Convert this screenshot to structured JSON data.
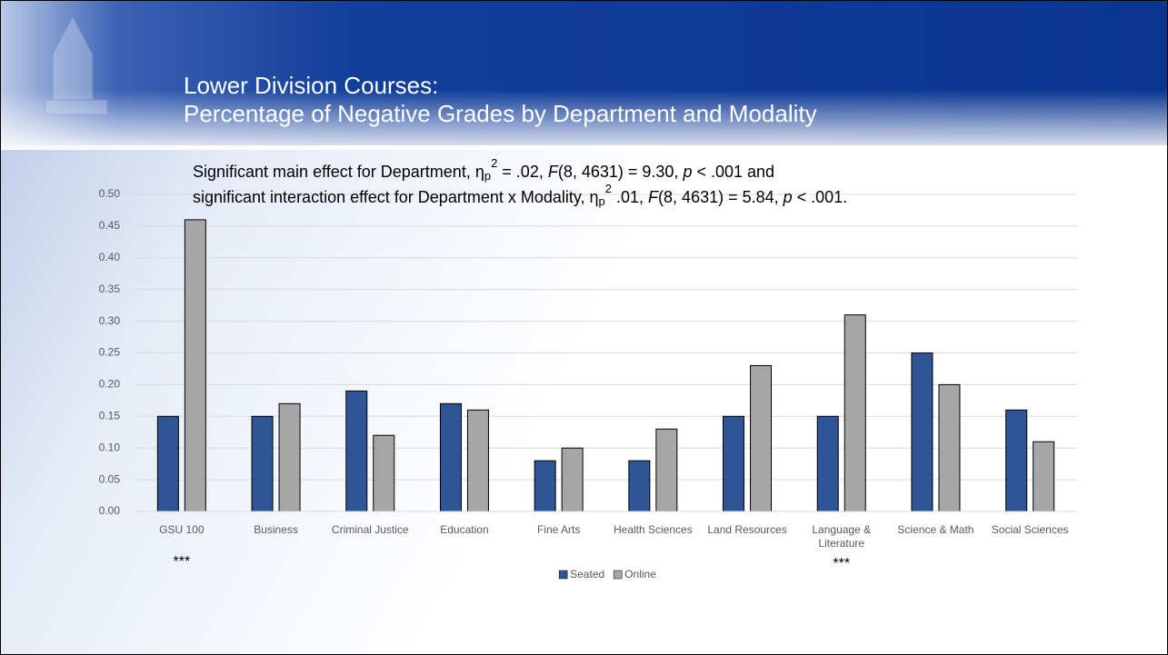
{
  "chart_data": {
    "type": "bar",
    "title": [
      "Lower Division Courses:",
      "Percentage of Negative Grades by Department and Modality"
    ],
    "annotation_lines": [
      [
        {
          "text": "Significant main effect for Department, η"
        },
        {
          "text": "p",
          "format": "sub"
        },
        {
          "text": "2",
          "format": "sup"
        },
        {
          "text": " = .02, "
        },
        {
          "text": "F",
          "format": "italic"
        },
        {
          "text": "(8, 4631) = 9.30, "
        },
        {
          "text": "p",
          "format": "italic"
        },
        {
          "text": " < .001 and"
        }
      ],
      [
        {
          "text": "significant interaction effect for Department x Modality, η"
        },
        {
          "text": "p",
          "format": "sub"
        },
        {
          "text": "2",
          "format": "sup"
        },
        {
          "text": " .01, "
        },
        {
          "text": "F",
          "format": "italic"
        },
        {
          "text": "(8, 4631) = 5.84, "
        },
        {
          "text": "p",
          "format": "italic"
        },
        {
          "text": " < .001."
        }
      ]
    ],
    "categories": [
      "GSU 100",
      "Business",
      "Criminal Justice",
      "Education",
      "Fine Arts",
      "Health Sciences",
      "Land Resources",
      "Language & Literature",
      "Science & Math",
      "Social Sciences"
    ],
    "markers": [
      "***",
      null,
      null,
      null,
      null,
      null,
      null,
      "***",
      null,
      null
    ],
    "series": [
      {
        "name": "Seated",
        "color": "#2f5597",
        "values": [
          0.15,
          0.15,
          0.19,
          0.17,
          0.08,
          0.08,
          0.15,
          0.15,
          0.25,
          0.16
        ]
      },
      {
        "name": "Online",
        "color": "#a6a6a6",
        "values": [
          0.46,
          0.17,
          0.12,
          0.16,
          0.1,
          0.13,
          0.23,
          0.31,
          0.2,
          0.11
        ]
      }
    ],
    "ylim": [
      0,
      0.5
    ],
    "yticks": [
      {
        "value": 0,
        "label": "0.00"
      },
      {
        "value": 0.05,
        "label": "0.05"
      },
      {
        "value": 0.1,
        "label": "0.10"
      },
      {
        "value": 0.15,
        "label": "0.15"
      },
      {
        "value": 0.2,
        "label": "0.20"
      },
      {
        "value": 0.25,
        "label": "0.25"
      },
      {
        "value": 0.3,
        "label": "0.30"
      },
      {
        "value": 0.35,
        "label": "0.35"
      },
      {
        "value": 0.4,
        "label": "0.40"
      },
      {
        "value": 0.45,
        "label": "0.45"
      },
      {
        "value": 0.5,
        "label": "0.50"
      }
    ],
    "grid": true,
    "legend": "bottom"
  }
}
